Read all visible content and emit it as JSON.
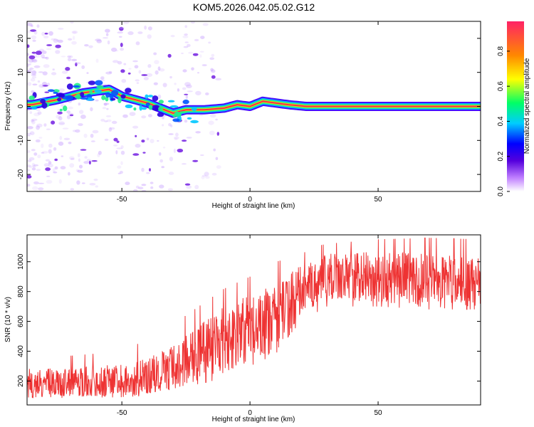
{
  "title": "KOM5.2026.042.05.02.G12",
  "chart_data": [
    {
      "type": "heatmap",
      "id": "spectrogram",
      "xlabel": "Height of straight line (km)",
      "ylabel": "Frequency (Hz)",
      "xlim": [
        -87,
        90
      ],
      "ylim": [
        -25,
        25
      ],
      "xticks": [
        -50,
        0,
        50
      ],
      "yticks": [
        -20,
        -10,
        0,
        10,
        20
      ],
      "colorbar": {
        "label": "Normalized spectral amplitude",
        "range": [
          0,
          0.97
        ],
        "ticks": [
          0.0,
          0.2,
          0.4,
          0.6,
          0.8
        ]
      },
      "ridge": {
        "description": "dominant frequency track",
        "points": [
          {
            "x": -85,
            "freq": 0.5
          },
          {
            "x": -75,
            "freq": 2
          },
          {
            "x": -65,
            "freq": 4
          },
          {
            "x": -55,
            "freq": 5
          },
          {
            "x": -50,
            "freq": 3
          },
          {
            "x": -40,
            "freq": 1
          },
          {
            "x": -30,
            "freq": -2
          },
          {
            "x": -25,
            "freq": -1
          },
          {
            "x": -18,
            "freq": -1
          },
          {
            "x": -10,
            "freq": -0.5
          },
          {
            "x": -5,
            "freq": 0.5
          },
          {
            "x": 0,
            "freq": 0
          },
          {
            "x": 5,
            "freq": 1.5
          },
          {
            "x": 10,
            "freq": 1
          },
          {
            "x": 15,
            "freq": 0.5
          },
          {
            "x": 22,
            "freq": 0
          },
          {
            "x": 90,
            "freq": 0
          }
        ]
      }
    },
    {
      "type": "line",
      "id": "snr",
      "xlabel": "Height of straight line (km)",
      "ylabel": "SNR (10 * v/v)",
      "xlim": [
        -87,
        90
      ],
      "ylim": [
        40,
        1180
      ],
      "xticks": [
        -50,
        0,
        50
      ],
      "yticks": [
        200,
        400,
        600,
        800,
        1000
      ],
      "color": "#ee3333",
      "series": [
        {
          "name": "SNR",
          "trend_x": [
            -87,
            -70,
            -50,
            -40,
            -30,
            -20,
            -10,
            0,
            10,
            15,
            20,
            25,
            30,
            50,
            70,
            90
          ],
          "trend_y": [
            180,
            190,
            200,
            230,
            300,
            380,
            480,
            560,
            620,
            720,
            820,
            860,
            900,
            900,
            870,
            850
          ],
          "spread_low": [
            90,
            100,
            100,
            120,
            150,
            180,
            220,
            300,
            380,
            500,
            600,
            650,
            700,
            700,
            680,
            680
          ],
          "spread_high": [
            360,
            370,
            400,
            480,
            580,
            700,
            820,
            900,
            1000,
            1020,
            1050,
            1100,
            1120,
            1150,
            1160,
            1150
          ]
        }
      ]
    }
  ]
}
